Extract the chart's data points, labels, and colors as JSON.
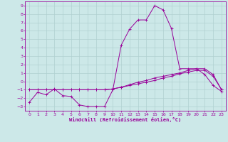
{
  "xlabel": "Windchill (Refroidissement éolien,°C)",
  "background_color": "#cce8e8",
  "grid_color": "#b0d0d0",
  "line_color": "#990099",
  "xlim": [
    -0.5,
    23.5
  ],
  "ylim": [
    -3.5,
    9.5
  ],
  "xticks": [
    0,
    1,
    2,
    3,
    4,
    5,
    6,
    7,
    8,
    9,
    10,
    11,
    12,
    13,
    14,
    15,
    16,
    17,
    18,
    19,
    20,
    21,
    22,
    23
  ],
  "yticks": [
    -3,
    -2,
    -1,
    0,
    1,
    2,
    3,
    4,
    5,
    6,
    7,
    8,
    9
  ],
  "line1_x": [
    0,
    1,
    2,
    3,
    4,
    5,
    6,
    7,
    8,
    9,
    10,
    11,
    12,
    13,
    14,
    15,
    16,
    17,
    18,
    19,
    20,
    21,
    22,
    23
  ],
  "line1_y": [
    -2.5,
    -1.3,
    -1.6,
    -0.9,
    -1.7,
    -1.8,
    -2.8,
    -3.0,
    -3.0,
    -3.0,
    -1.0,
    4.3,
    6.2,
    7.3,
    7.3,
    9.0,
    8.5,
    6.3,
    1.5,
    1.5,
    1.5,
    0.8,
    -0.5,
    -1.2
  ],
  "line2_x": [
    0,
    1,
    2,
    3,
    4,
    5,
    6,
    7,
    8,
    9,
    10,
    11,
    12,
    13,
    14,
    15,
    16,
    17,
    18,
    19,
    20,
    21,
    22,
    23
  ],
  "line2_y": [
    -1.0,
    -1.0,
    -1.0,
    -1.0,
    -1.0,
    -1.0,
    -1.0,
    -1.0,
    -1.0,
    -1.0,
    -0.9,
    -0.7,
    -0.5,
    -0.3,
    -0.1,
    0.1,
    0.4,
    0.6,
    0.9,
    1.1,
    1.3,
    1.3,
    0.6,
    -1.0
  ],
  "line3_x": [
    0,
    1,
    2,
    3,
    4,
    5,
    6,
    7,
    8,
    9,
    10,
    11,
    12,
    13,
    14,
    15,
    16,
    17,
    18,
    19,
    20,
    21,
    22,
    23
  ],
  "line3_y": [
    -1.0,
    -1.0,
    -1.0,
    -1.0,
    -1.0,
    -1.0,
    -1.0,
    -1.0,
    -1.0,
    -1.0,
    -0.9,
    -0.7,
    -0.4,
    -0.1,
    0.1,
    0.4,
    0.6,
    0.8,
    1.0,
    1.3,
    1.5,
    1.5,
    0.8,
    -1.0
  ],
  "figsize": [
    3.2,
    2.0
  ],
  "dpi": 100
}
